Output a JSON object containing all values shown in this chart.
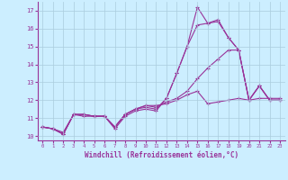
{
  "xlabel": "Windchill (Refroidissement éolien,°C)",
  "bg_color": "#cceeff",
  "grid_color": "#aaccdd",
  "line_color": "#993399",
  "xlim": [
    -0.5,
    23.5
  ],
  "ylim": [
    9.75,
    17.5
  ],
  "yticks": [
    10,
    11,
    12,
    13,
    14,
    15,
    16,
    17
  ],
  "xticks": [
    0,
    1,
    2,
    3,
    4,
    5,
    6,
    7,
    8,
    9,
    10,
    11,
    12,
    13,
    14,
    15,
    16,
    17,
    18,
    19,
    20,
    21,
    22,
    23
  ],
  "series": [
    [
      10.5,
      10.4,
      10.1,
      11.2,
      11.2,
      11.1,
      11.1,
      10.4,
      11.1,
      11.4,
      11.5,
      11.4,
      12.1,
      13.5,
      15.0,
      17.2,
      16.3,
      16.4,
      15.5,
      14.8,
      12.0,
      12.8,
      12.0,
      12.0
    ],
    [
      10.5,
      10.4,
      10.1,
      11.2,
      11.2,
      11.1,
      11.1,
      10.5,
      11.2,
      11.5,
      11.6,
      11.5,
      12.1,
      13.5,
      15.0,
      16.2,
      16.3,
      16.5,
      15.5,
      14.8,
      12.0,
      12.8,
      12.0,
      12.0
    ],
    [
      10.5,
      10.4,
      10.1,
      11.2,
      11.1,
      11.1,
      11.1,
      10.5,
      11.2,
      11.5,
      11.7,
      11.6,
      11.9,
      12.1,
      12.5,
      13.2,
      13.8,
      14.3,
      14.8,
      14.8,
      12.0,
      12.8,
      12.0,
      12.0
    ],
    [
      10.5,
      10.4,
      10.2,
      11.2,
      11.2,
      11.1,
      11.1,
      10.5,
      11.2,
      11.5,
      11.7,
      11.7,
      11.8,
      12.0,
      12.3,
      12.5,
      11.8,
      11.9,
      12.0,
      12.1,
      12.0,
      12.1,
      12.1,
      12.1
    ]
  ]
}
